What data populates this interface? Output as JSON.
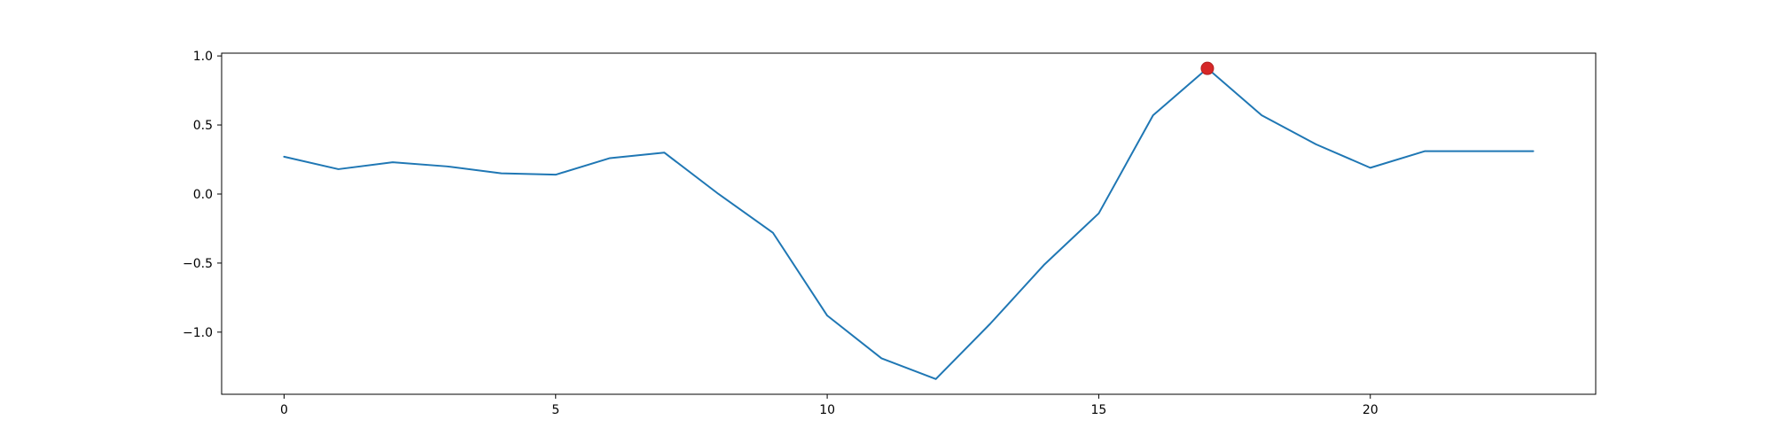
{
  "chart_data": {
    "type": "line",
    "title": "",
    "xlabel": "",
    "ylabel": "",
    "xlim": [
      -1.15,
      24.15
    ],
    "ylim": [
      -1.45,
      1.02
    ],
    "grid": false,
    "x_ticks": [
      0,
      5,
      10,
      15,
      20
    ],
    "x_tick_labels": [
      "0",
      "5",
      "10",
      "15",
      "20"
    ],
    "y_ticks": [
      1.0,
      0.5,
      0.0,
      -0.5,
      -1.0
    ],
    "y_tick_labels": [
      "1.0",
      "0.5",
      "0.0",
      "−0.5",
      "−1.0"
    ],
    "series": [
      {
        "color": "#1f77b4",
        "x": [
          0,
          1,
          2,
          3,
          4,
          5,
          6,
          7,
          8,
          9,
          10,
          11,
          12,
          13,
          14,
          15,
          16,
          17,
          18,
          19,
          20,
          21,
          22,
          23
        ],
        "values": [
          0.27,
          0.18,
          0.23,
          0.2,
          0.15,
          0.14,
          0.26,
          0.3,
          0.0,
          -0.28,
          -0.88,
          -1.19,
          -1.34,
          -0.94,
          -0.51,
          -0.14,
          0.57,
          0.91,
          0.57,
          0.36,
          0.19,
          0.31,
          0.31,
          0.31
        ]
      }
    ],
    "highlight": {
      "x": 17,
      "y": 0.91,
      "color": "#d62728"
    }
  }
}
